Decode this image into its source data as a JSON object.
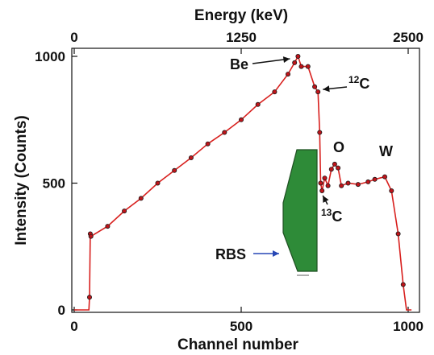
{
  "chart_data": {
    "type": "scatter",
    "title": "",
    "xlabel": "Channel number",
    "ylabel": "Intensity (Counts)",
    "x2label": "Energy (keV)",
    "xlim": [
      0,
      1000
    ],
    "ylim": [
      0,
      1000
    ],
    "x2lim": [
      0,
      2500
    ],
    "x_ticks": [
      "0",
      "500",
      "1000"
    ],
    "y_ticks": [
      "0",
      "500",
      "1000"
    ],
    "x2_ticks": [
      "0",
      "1250",
      "2500"
    ],
    "grid": false,
    "legend": "none",
    "series": [
      {
        "marker_color": "#c0141a",
        "marker_edge_color": "#1a1a1a",
        "line_color": "#d8201e",
        "points": [
          [
            0,
            0
          ],
          [
            40,
            0
          ],
          [
            44,
            0
          ],
          [
            46,
            50
          ],
          [
            48,
            300
          ],
          [
            50,
            290
          ],
          [
            100,
            330
          ],
          [
            150,
            390
          ],
          [
            200,
            440
          ],
          [
            250,
            500
          ],
          [
            300,
            550
          ],
          [
            350,
            600
          ],
          [
            400,
            655
          ],
          [
            450,
            700
          ],
          [
            500,
            750
          ],
          [
            550,
            810
          ],
          [
            600,
            860
          ],
          [
            640,
            930
          ],
          [
            660,
            975
          ],
          [
            670,
            1000
          ],
          [
            680,
            960
          ],
          [
            700,
            960
          ],
          [
            720,
            880
          ],
          [
            730,
            860
          ],
          [
            735,
            700
          ],
          [
            738,
            500
          ],
          [
            742,
            470
          ],
          [
            750,
            520
          ],
          [
            760,
            490
          ],
          [
            770,
            555
          ],
          [
            780,
            575
          ],
          [
            790,
            560
          ],
          [
            800,
            490
          ],
          [
            820,
            500
          ],
          [
            850,
            495
          ],
          [
            880,
            505
          ],
          [
            900,
            515
          ],
          [
            930,
            525
          ],
          [
            950,
            470
          ],
          [
            970,
            300
          ],
          [
            985,
            100
          ],
          [
            995,
            0
          ],
          [
            1010,
            0
          ]
        ]
      }
    ],
    "annotations": {
      "be": {
        "text": "Be",
        "x": 670,
        "y": 1000
      },
      "c12": {
        "sup": "12",
        "text": "C",
        "x": 735,
        "y": 860
      },
      "o": {
        "text": "O",
        "x": 775,
        "y": 575
      },
      "w": {
        "text": "W",
        "x": 930,
        "y": 525
      },
      "c13": {
        "sup": "13",
        "text": "C",
        "x": 742,
        "y": 470
      },
      "rbs": {
        "text": "RBS"
      }
    },
    "inset_shape_color": "#2e8b38",
    "rbs_arrow_color": "#2747b5"
  }
}
